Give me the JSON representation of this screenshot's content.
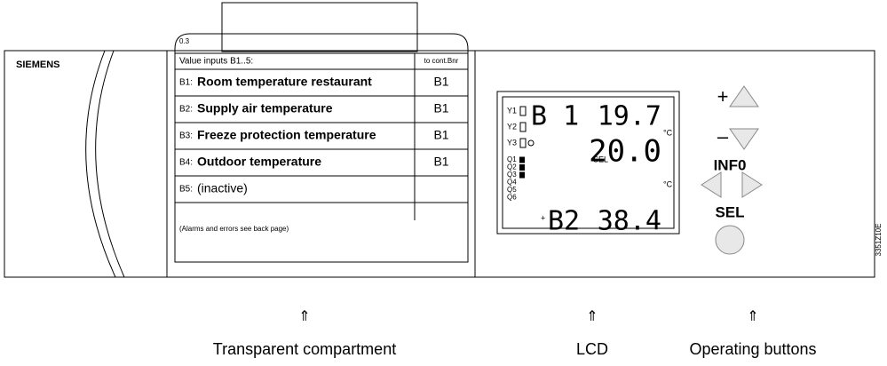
{
  "brand": "SIEMENS",
  "card": {
    "number": "0.3",
    "header": "Value inputs B1..5:",
    "column_header": "to cont.Bnr",
    "rows": [
      {
        "prefix": "B1:",
        "label": "Room temperature restaurant",
        "value": "B1"
      },
      {
        "prefix": "B2:",
        "label": "Supply air temperature",
        "value": "B1"
      },
      {
        "prefix": "B3:",
        "label": "Freeze protection temperature",
        "value": "B1"
      },
      {
        "prefix": "B4:",
        "label": "Outdoor temperature",
        "value": "B1"
      },
      {
        "prefix": "B5:",
        "label": "(inactive)"
      }
    ],
    "footnote": "(Alarms and errors see back page)"
  },
  "lcd": {
    "outputs": [
      "Y1",
      "Y2",
      "Y3"
    ],
    "relays": [
      "Q1",
      "Q2",
      "Q3",
      "Q4",
      "Q5",
      "Q6"
    ],
    "top_input": "B 1",
    "top_value": "19.7",
    "setpoint": "20.0",
    "unit_top": "°C",
    "sel": "SEL",
    "unit_bottom": "°C",
    "bottom_sign": "+",
    "bottom_input": "B2",
    "bottom_value": "38.4"
  },
  "buttons": {
    "plus": "+",
    "minus": "–",
    "info": "INF0",
    "sel": "SEL"
  },
  "code": "3351Z10E",
  "callouts": [
    {
      "arrow": "⇑",
      "label": "Transparent compartment"
    },
    {
      "arrow": "⇑",
      "label": "LCD"
    },
    {
      "arrow": "⇑",
      "label": "Operating buttons"
    }
  ]
}
